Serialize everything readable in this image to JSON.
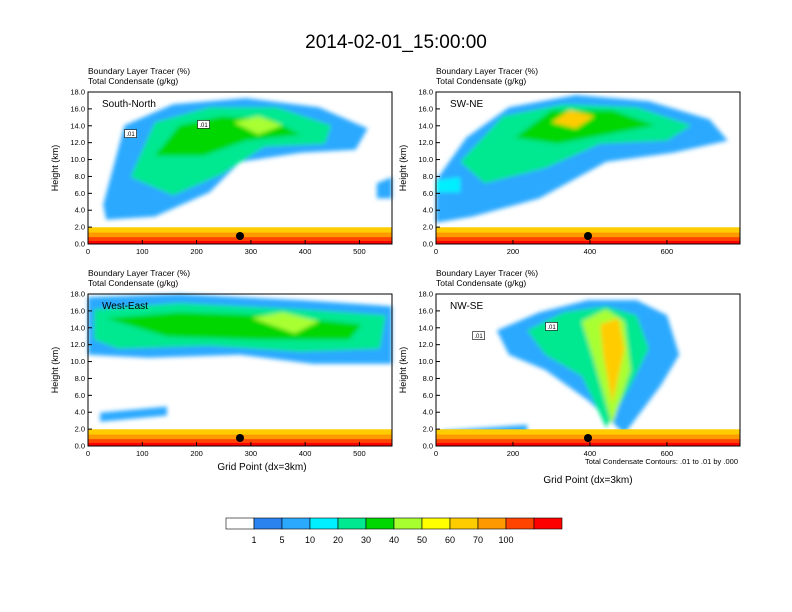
{
  "title": "2014-02-01_15:00:00",
  "panel_headers": {
    "line1": "Boundary Layer Tracer   (%)",
    "line2": "Total Condensate   (g/kg)"
  },
  "ylabel": "Height (km)",
  "xlabel": "Grid Point (dx=3km)",
  "contour_note": "Total Condensate Contours: .01 to .01 by .000",
  "colors": {
    "levels": [
      "#ffffff",
      "#2b83f0",
      "#2ba9ff",
      "#00f0ff",
      "#00e890",
      "#00d700",
      "#a8ff30",
      "#ffff00",
      "#ffcc00",
      "#ff9900",
      "#ff4400",
      "#ff0000"
    ],
    "contour": "#000000"
  },
  "chart_data": [
    {
      "type": "heatmap",
      "name": "South-North",
      "ylim": [
        0,
        18
      ],
      "yticks": [
        "0.0",
        "2.0",
        "4.0",
        "6.0",
        "8.0",
        "10.0",
        "12.0",
        "14.0",
        "16.0",
        "18.0"
      ],
      "xlim": [
        0,
        560
      ],
      "xticks": [
        0,
        100,
        200,
        300,
        400,
        500
      ],
      "marker_x": 280,
      "contour_labels": [
        ".01",
        ".01"
      ]
    },
    {
      "type": "heatmap",
      "name": "SW-NE",
      "ylim": [
        0,
        18
      ],
      "yticks": [
        "0.0",
        "2.0",
        "4.0",
        "6.0",
        "8.0",
        "10.0",
        "12.0",
        "14.0",
        "16.0",
        "18.0"
      ],
      "xlim": [
        0,
        790
      ],
      "xticks": [
        0,
        200,
        400,
        600
      ],
      "marker_x": 395,
      "contour_labels": []
    },
    {
      "type": "heatmap",
      "name": "West-East",
      "ylim": [
        0,
        18
      ],
      "yticks": [
        "0.0",
        "2.0",
        "4.0",
        "6.0",
        "8.0",
        "10.0",
        "12.0",
        "14.0",
        "16.0",
        "18.0"
      ],
      "xlim": [
        0,
        560
      ],
      "xticks": [
        0,
        100,
        200,
        300,
        400,
        500
      ],
      "marker_x": 280,
      "contour_labels": []
    },
    {
      "type": "heatmap",
      "name": "NW-SE",
      "ylim": [
        0,
        18
      ],
      "yticks": [
        "0.0",
        "2.0",
        "4.0",
        "6.0",
        "8.0",
        "10.0",
        "12.0",
        "14.0",
        "16.0",
        "18.0"
      ],
      "xlim": [
        0,
        790
      ],
      "xticks": [
        0,
        200,
        400,
        600
      ],
      "marker_x": 395,
      "contour_labels": [
        ".01",
        ".01"
      ]
    }
  ],
  "colorbar": {
    "labels": [
      "1",
      "5",
      "10",
      "20",
      "30",
      "40",
      "50",
      "60",
      "70",
      "100"
    ]
  }
}
